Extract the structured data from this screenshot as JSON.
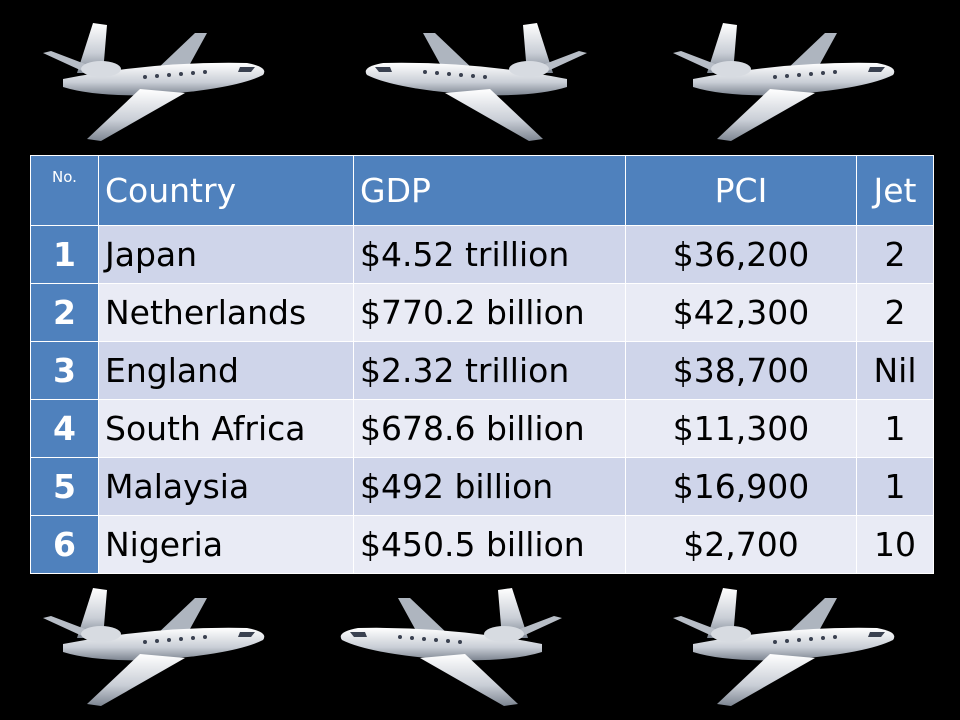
{
  "table": {
    "header": [
      "No.",
      "Country",
      "GDP",
      "PCI",
      "Jet"
    ],
    "rows": [
      [
        "1",
        "Japan",
        "$4.52 trillion",
        "$36,200",
        "2"
      ],
      [
        "2",
        "Netherlands",
        "$770.2 billion",
        "$42,300",
        "2"
      ],
      [
        "3",
        "England",
        "$2.32 trillion",
        "$38,700",
        "Nil"
      ],
      [
        "4",
        "South Africa",
        "$678.6 billion",
        "$11,300",
        "1"
      ],
      [
        "5",
        "Malaysia",
        "$492 billion",
        "$16,900",
        "1"
      ],
      [
        "6",
        "Nigeria",
        "$450.5 billion",
        "$2,700",
        "10"
      ]
    ]
  }
}
